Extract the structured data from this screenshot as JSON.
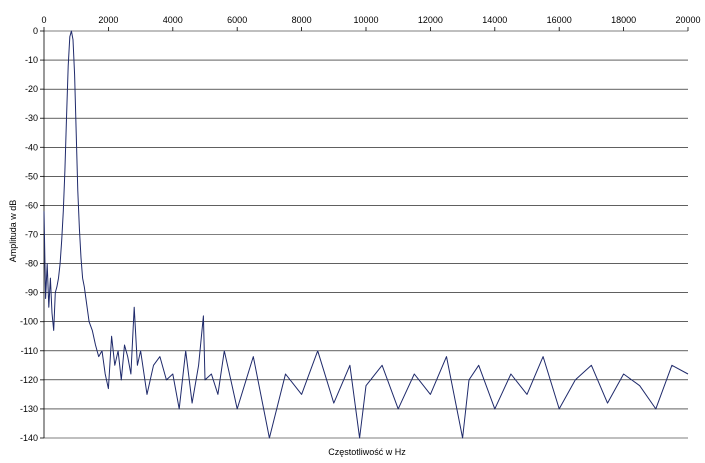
{
  "chart_data": {
    "type": "line",
    "title": "",
    "xlabel": "Częstotliwość w Hz",
    "ylabel": "Amplituda w dB",
    "xlim": [
      0,
      20000
    ],
    "ylim": [
      -140,
      0
    ],
    "x_axis_position": "top",
    "grid": "horizontal",
    "xticks": [
      "0",
      "2000",
      "4000",
      "6000",
      "8000",
      "10000",
      "12000",
      "14000",
      "16000",
      "18000",
      "20000"
    ],
    "yticks": [
      "0",
      "-10",
      "-20",
      "-30",
      "-40",
      "-50",
      "-60",
      "-70",
      "-80",
      "-90",
      "-100",
      "-110",
      "-120",
      "-130",
      "-140"
    ],
    "line_color": "#1f2a6b",
    "series": [
      {
        "x": [
          0,
          50,
          100,
          150,
          200,
          250,
          300,
          350,
          400,
          450,
          500,
          550,
          600,
          650,
          700,
          750,
          800,
          850,
          900,
          950,
          1000,
          1050,
          1100,
          1150,
          1200,
          1250,
          1300,
          1350,
          1400,
          1500,
          1600,
          1700,
          1800,
          1900,
          2000,
          2100,
          2200,
          2300,
          2400,
          2500,
          2600,
          2700,
          2800,
          2900,
          3000,
          3200,
          3400,
          3600,
          3800,
          4000,
          4200,
          4400,
          4600,
          4800,
          4950,
          5000,
          5200,
          5400,
          5600,
          5800,
          6000,
          6500,
          7000,
          7500,
          8000,
          8500,
          9000,
          9500,
          9800,
          10000,
          10500,
          11000,
          11500,
          12000,
          12500,
          13000,
          13200,
          13500,
          14000,
          14500,
          15000,
          15500,
          16000,
          16500,
          17000,
          17500,
          18000,
          18500,
          19000,
          19500,
          20000
        ],
        "values": [
          -62,
          -92,
          -80,
          -95,
          -85,
          -97,
          -103,
          -90,
          -88,
          -85,
          -80,
          -72,
          -62,
          -48,
          -30,
          -12,
          -2,
          0,
          -3,
          -15,
          -35,
          -55,
          -68,
          -78,
          -85,
          -88,
          -92,
          -96,
          -100,
          -103,
          -108,
          -112,
          -110,
          -118,
          -123,
          -105,
          -115,
          -110,
          -120,
          -108,
          -112,
          -118,
          -95,
          -115,
          -110,
          -125,
          -115,
          -112,
          -120,
          -118,
          -130,
          -110,
          -128,
          -115,
          -98,
          -120,
          -118,
          -125,
          -110,
          -120,
          -130,
          -112,
          -140,
          -118,
          -125,
          -110,
          -128,
          -115,
          -140,
          -122,
          -115,
          -130,
          -118,
          -125,
          -112,
          -140,
          -120,
          -115,
          -130,
          -118,
          -125,
          -112,
          -130,
          -120,
          -115,
          -128,
          -118,
          -122,
          -130,
          -115,
          -118
        ]
      }
    ]
  }
}
